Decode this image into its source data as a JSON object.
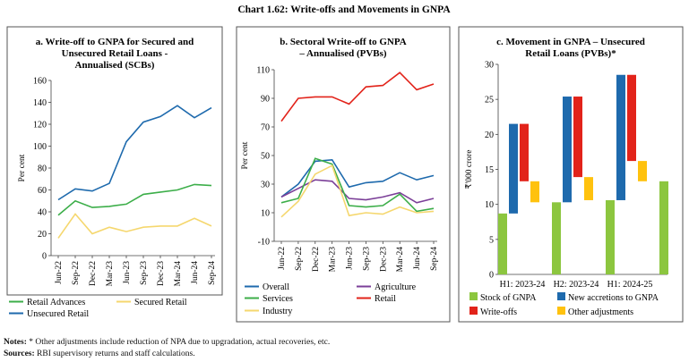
{
  "title": "Chart 1.62: Write-offs and Movements in GNPA",
  "notes": {
    "notes_label": "Notes:",
    "notes_text": " * Other adjustments include reduction of NPA due to upgradation, actual recoveries, etc.",
    "sources_label": "Sources:",
    "sources_text": " RBI supervisory returns and staff calculations."
  },
  "colors": {
    "green": "#3cae49",
    "yellow": "#f5d76e",
    "blue": "#1e6aad",
    "purple": "#7b3f98",
    "red": "#e2231a",
    "lightgreen": "#8cc63f",
    "gold": "#ffc20e",
    "border": "#555555"
  },
  "chart_data": [
    {
      "type": "line",
      "title": [
        "a. Write-off to GNPA for Secured and",
        "Unsecured Retail Loans -",
        "Annualised (SCBs)"
      ],
      "ylabel": "Per cent",
      "ylim": [
        0,
        160
      ],
      "yticks": [
        0,
        20,
        40,
        60,
        80,
        100,
        120,
        140,
        160
      ],
      "x": [
        "Jun-22",
        "Sep-22",
        "Dec-22",
        "Mar-23",
        "Jun-23",
        "Sep-23",
        "Dec-23",
        "Mar-24",
        "Jun-24",
        "Sep-24"
      ],
      "series": [
        {
          "name": "Retail Advances",
          "color": "#3cae49",
          "values": [
            37,
            50,
            44,
            45,
            47,
            56,
            58,
            60,
            65,
            64
          ]
        },
        {
          "name": "Secured Retail",
          "color": "#f5d76e",
          "values": [
            16,
            38,
            20,
            26,
            22,
            26,
            27,
            27,
            34,
            27
          ]
        },
        {
          "name": "Unsecured Retail",
          "color": "#1e6aad",
          "values": [
            51,
            61,
            59,
            66,
            104,
            122,
            127,
            137,
            126,
            135
          ]
        }
      ],
      "legend": [
        {
          "name": "Retail Advances",
          "color": "#3cae49"
        },
        {
          "name": "Secured Retail",
          "color": "#f5d76e"
        },
        {
          "name": "Unsecured Retail",
          "color": "#1e6aad"
        }
      ]
    },
    {
      "type": "line",
      "title": [
        "b. Sectoral Write-off to GNPA",
        "– Annualised (PVBs)"
      ],
      "ylabel": "Per cent",
      "ylim": [
        -10,
        110
      ],
      "yticks": [
        -10,
        10,
        30,
        50,
        70,
        90,
        110
      ],
      "x": [
        "Jun-22",
        "Sep-22",
        "Dec-22",
        "Mar-23",
        "Jun-23",
        "Sep-23",
        "Dec-23",
        "Mar-24",
        "Jun-24",
        "Sep-24"
      ],
      "series": [
        {
          "name": "Overall",
          "color": "#1e6aad",
          "values": [
            21,
            30,
            46,
            47,
            28,
            31,
            32,
            38,
            33,
            36
          ]
        },
        {
          "name": "Agriculture",
          "color": "#7b3f98",
          "values": [
            21,
            27,
            33,
            32,
            20,
            19,
            21,
            24,
            17,
            20
          ]
        },
        {
          "name": "Services",
          "color": "#3cae49",
          "values": [
            17,
            20,
            48,
            44,
            15,
            14,
            15,
            23,
            11,
            13
          ]
        },
        {
          "name": "Retail",
          "color": "#e2231a",
          "values": [
            74,
            90,
            91,
            91,
            86,
            98,
            99,
            108,
            96,
            100
          ]
        },
        {
          "name": "Industry",
          "color": "#f5d76e",
          "values": [
            7,
            18,
            37,
            43,
            8,
            10,
            9,
            14,
            10,
            11
          ]
        }
      ],
      "legend": [
        {
          "name": "Overall",
          "color": "#1e6aad"
        },
        {
          "name": "Agriculture",
          "color": "#7b3f98"
        },
        {
          "name": "Services",
          "color": "#3cae49"
        },
        {
          "name": "Retail",
          "color": "#e2231a"
        },
        {
          "name": "Industry",
          "color": "#f5d76e"
        }
      ]
    },
    {
      "type": "bar",
      "subtype": "waterfall",
      "title": [
        "c. Movement in GNPA – Unsecured",
        "Retail Loans (PVBs)*"
      ],
      "ylabel": "₹'000 crore",
      "ylim": [
        0,
        30
      ],
      "yticks": [
        0,
        5,
        10,
        15,
        20,
        25,
        30
      ],
      "categories": [
        "H1: 2023-24",
        "H2: 2023-24",
        "H1: 2024-25"
      ],
      "groups": [
        {
          "label": "H1: 2023-24",
          "stock_start": 8.7,
          "new_accretions": 12.8,
          "write_offs": 8.2,
          "other_adjustments": 3.0,
          "stock_end": 10.3
        },
        {
          "label": "H2: 2023-24",
          "stock_start": 10.3,
          "new_accretions": 15.1,
          "write_offs": 11.5,
          "other_adjustments": 3.3,
          "stock_end": 10.6
        },
        {
          "label": "H1: 2024-25",
          "stock_start": 10.6,
          "new_accretions": 17.9,
          "write_offs": 12.3,
          "other_adjustments": 2.9,
          "stock_end": 13.3
        }
      ],
      "legend": [
        {
          "name": "Stock of GNPA",
          "color": "#8cc63f"
        },
        {
          "name": "New accretions to GNPA",
          "color": "#1e6aad"
        },
        {
          "name": "Write-offs",
          "color": "#e2231a"
        },
        {
          "name": "Other adjustments",
          "color": "#ffc20e"
        }
      ]
    }
  ]
}
